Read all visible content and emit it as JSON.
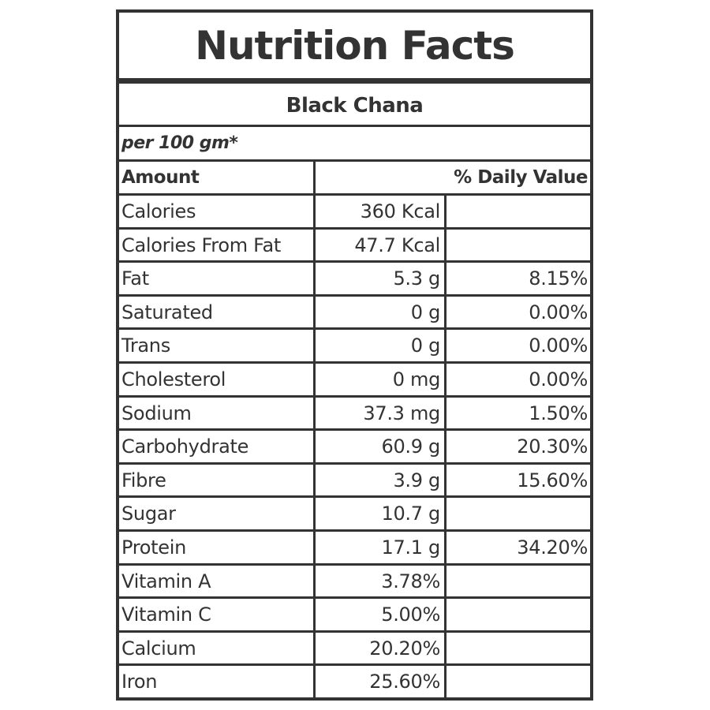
{
  "label": {
    "title": "Nutrition Facts",
    "product": "Black Chana",
    "serving": "per 100 gm*",
    "header_amount": "Amount",
    "header_daily_value": "% Daily Value",
    "rows": [
      {
        "name": "Calories",
        "amount": "360 Kcal",
        "dv": ""
      },
      {
        "name": "Calories From Fat",
        "amount": "47.7 Kcal",
        "dv": ""
      },
      {
        "name": "Fat",
        "amount": "5.3 g",
        "dv": "8.15%"
      },
      {
        "name": "Saturated",
        "amount": "0 g",
        "dv": "0.00%"
      },
      {
        "name": "Trans",
        "amount": "0 g",
        "dv": "0.00%"
      },
      {
        "name": "Cholesterol",
        "amount": "0 mg",
        "dv": "0.00%"
      },
      {
        "name": "Sodium",
        "amount": "37.3 mg",
        "dv": "1.50%"
      },
      {
        "name": "Carbohydrate",
        "amount": "60.9 g",
        "dv": "20.30%"
      },
      {
        "name": "Fibre",
        "amount": "3.9 g",
        "dv": "15.60%"
      },
      {
        "name": "Sugar",
        "amount": "10.7 g",
        "dv": ""
      },
      {
        "name": "Protein",
        "amount": "17.1 g",
        "dv": "34.20%"
      },
      {
        "name": "Vitamin A",
        "amount": "3.78%",
        "dv": ""
      },
      {
        "name": "Vitamin C",
        "amount": "5.00%",
        "dv": ""
      },
      {
        "name": "Calcium",
        "amount": "20.20%",
        "dv": ""
      },
      {
        "name": "Iron",
        "amount": "25.60%",
        "dv": ""
      }
    ]
  },
  "colors": {
    "ink": "#333333",
    "background": "#ffffff"
  }
}
